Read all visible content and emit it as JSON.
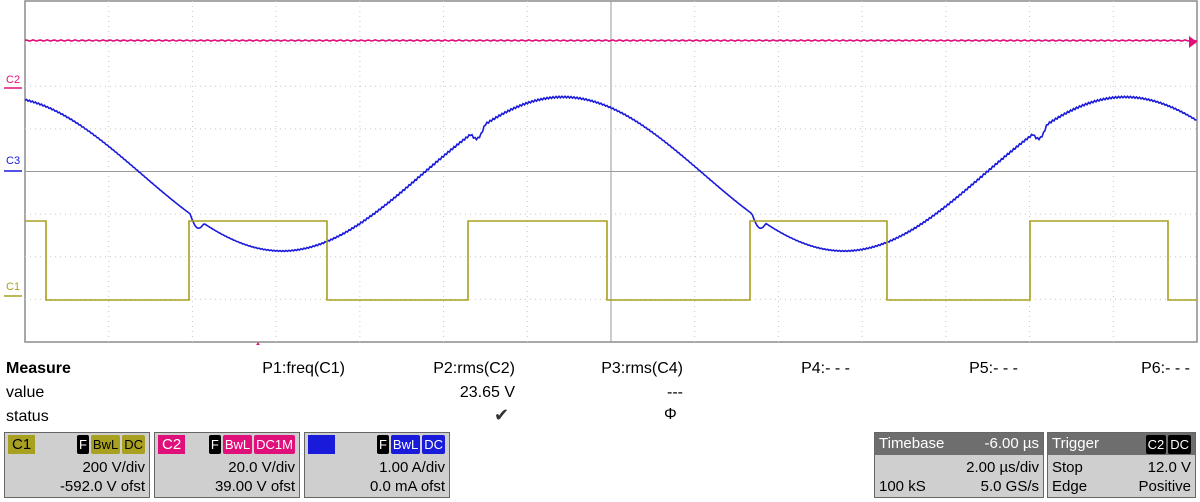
{
  "scope": {
    "channels": [
      {
        "id": "C2",
        "color": "#e0107a"
      },
      {
        "id": "C3",
        "color": "#1a1adb"
      },
      {
        "id": "C1",
        "color": "#a8a020"
      }
    ]
  },
  "measure": {
    "title": "Measure",
    "row_value_label": "value",
    "row_status_label": "status",
    "params": [
      {
        "label": "P1:freq(C1)",
        "value": "",
        "status": ""
      },
      {
        "label": "P2:rms(C2)",
        "value": "23.65 V",
        "status": "✔"
      },
      {
        "label": "P3:rms(C4)",
        "value": "---",
        "status": "Φ"
      },
      {
        "label": "P4:- - -",
        "value": "",
        "status": ""
      },
      {
        "label": "P5:- - -",
        "value": "",
        "status": ""
      },
      {
        "label": "P6:- - -",
        "value": "",
        "status": ""
      }
    ]
  },
  "channel_boxes": [
    {
      "id": "C1",
      "tag_color": "#a8a020",
      "tag_text_color": "#000000",
      "flags": [
        "F",
        "BwL",
        "DC"
      ],
      "flag_bg": "#a8a020",
      "flag_fg": "#000000",
      "scale": "200 V/div",
      "offset": "-592.0 V ofst"
    },
    {
      "id": "C2",
      "tag_color": "#e0107a",
      "tag_text_color": "#ffffff",
      "flags": [
        "F",
        "BwL",
        "DC1M"
      ],
      "flag_bg": "#e0107a",
      "flag_fg": "#ffffff",
      "scale": "20.0 V/div",
      "offset": "39.00 V ofst"
    },
    {
      "id": "C3",
      "tag_color": "#1a1adb",
      "tag_text_color": "#1a1adb",
      "flags": [
        "F",
        "BwL",
        "DC"
      ],
      "flag_bg": "#1a1adb",
      "flag_fg": "#ffffff",
      "scale": "1.00 A/div",
      "offset": "0.0 mA ofst"
    }
  ],
  "timebase": {
    "title": "Timebase",
    "delay": "-6.00 µs",
    "per_div": "2.00 µs/div",
    "samples": "100 kS",
    "rate": "5.0 GS/s"
  },
  "trigger": {
    "title": "Trigger",
    "source_flags": [
      "C2",
      "DC"
    ],
    "mode": "Stop",
    "level": "12.0 V",
    "type": "Edge",
    "slope": "Positive"
  }
}
